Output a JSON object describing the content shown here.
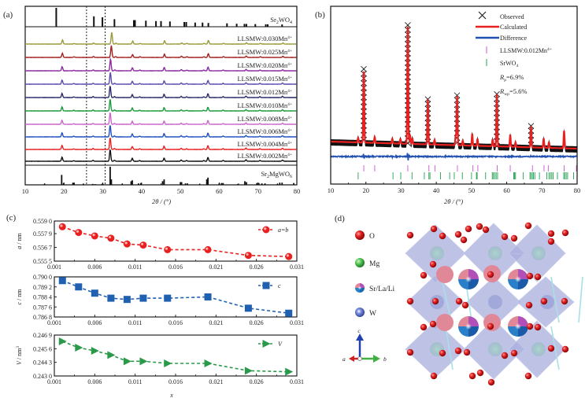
{
  "figure": {
    "panel_labels": [
      "(a)",
      "(b)",
      "(c)",
      "(d)"
    ]
  },
  "chart_data": [
    {
      "id": "a",
      "type": "line",
      "title": "",
      "xlabel": "2θ / (°)",
      "ylabel": "",
      "xlim": [
        10,
        80
      ],
      "xticks": [
        10,
        20,
        30,
        40,
        50,
        60,
        70,
        80
      ],
      "grid": false,
      "dashed_vlines": [
        25.8,
        30.6
      ],
      "reference_top": {
        "name": "Sr2WO4",
        "label_main": "Sr",
        "label_sub1": "2",
        "label_mid": "WO",
        "label_sub2": "4",
        "peaks": [
          [
            18.0,
            1.0
          ],
          [
            27.7,
            0.55
          ],
          [
            29.9,
            0.5
          ],
          [
            33.0,
            0.4
          ],
          [
            38.0,
            0.35
          ],
          [
            38.3,
            0.35
          ],
          [
            41.1,
            0.32
          ],
          [
            43.7,
            0.3
          ],
          [
            45.0,
            0.3
          ],
          [
            47.3,
            0.28
          ],
          [
            51.0,
            0.25
          ],
          [
            51.5,
            0.25
          ],
          [
            53.8,
            0.22
          ],
          [
            55.7,
            0.22
          ],
          [
            57.2,
            0.2
          ],
          [
            62.0,
            0.18
          ],
          [
            64.5,
            0.16
          ],
          [
            66.5,
            0.15
          ],
          [
            67.0,
            0.15
          ],
          [
            69.3,
            0.14
          ],
          [
            72.0,
            0.13
          ],
          [
            72.5,
            0.13
          ],
          [
            76.2,
            0.12
          ]
        ]
      },
      "series": [
        {
          "name": "LLSMW:0.030Mn4+",
          "label_main": "LLSMW:0.030Mn",
          "label_sup": "4+",
          "color": "#9a9a3a",
          "shift": 0.4
        },
        {
          "name": "LLSMW:0.025Mn4+",
          "label_main": "LLSMW:0.025Mn",
          "label_sup": "4+",
          "color": "#a32020",
          "shift": 0.3
        },
        {
          "name": "LLSMW:0.020Mn4+",
          "label_main": "LLSMW:0.020Mn",
          "label_sup": "4+",
          "color": "#8a2aa0",
          "shift": 0.1
        },
        {
          "name": "LLSMW:0.015Mn4+",
          "label_main": "LLSMW:0.015Mn",
          "label_sup": "4+",
          "color": "#5a4ab0",
          "shift": 0.05
        },
        {
          "name": "LLSMW:0.012Mn4+",
          "label_main": "LLSMW:0.012Mn",
          "label_sup": "4+",
          "color": "#2a2a6a",
          "shift": 0.0
        },
        {
          "name": "LLSMW:0.010Mn4+",
          "label_main": "LLSMW:0.010Mn",
          "label_sup": "4+",
          "color": "#1a9a3a",
          "shift": 0.0
        },
        {
          "name": "LLSMW:0.008Mn4+",
          "label_main": "LLSMW:0.008Mn",
          "label_sup": "4+",
          "color": "#cc66cc",
          "shift": 0.0
        },
        {
          "name": "LLSMW:0.006Mn4+",
          "label_main": "LLSMW:0.006Mn",
          "label_sup": "4+",
          "color": "#2050c0",
          "shift": 0.0
        },
        {
          "name": "LLSMW:0.004Mn4+",
          "label_main": "LLSMW:0.004Mn",
          "label_sup": "4+",
          "color": "#e82020",
          "shift": 0.0
        },
        {
          "name": "LLSMW:0.002Mn4+",
          "label_main": "LLSMW:0.002Mn",
          "label_sup": "4+",
          "color": "#111111",
          "shift": 0.0
        }
      ],
      "sample_peaks": [
        [
          19.5,
          0.35
        ],
        [
          22.5,
          0.05
        ],
        [
          27.5,
          0.08
        ],
        [
          31.9,
          1.0
        ],
        [
          33.0,
          0.08
        ],
        [
          37.6,
          0.25
        ],
        [
          39.5,
          0.06
        ],
        [
          45.8,
          0.28
        ],
        [
          50.2,
          0.1
        ],
        [
          51.6,
          0.06
        ],
        [
          56.0,
          0.06
        ],
        [
          57.1,
          0.32
        ],
        [
          61.0,
          0.07
        ],
        [
          66.9,
          0.12
        ],
        [
          70.5,
          0.07
        ],
        [
          76.3,
          0.1
        ]
      ],
      "reference_bottom": {
        "name": "Sr2MgWO6",
        "label_main": "Sr",
        "label_sub1": "2",
        "label_mid": "MgWO",
        "label_sub2": "6",
        "peaks": [
          [
            15.0,
            0.06
          ],
          [
            19.4,
            0.55
          ],
          [
            19.9,
            0.1
          ],
          [
            22.3,
            0.12
          ],
          [
            22.6,
            0.12
          ],
          [
            25.0,
            0.05
          ],
          [
            27.4,
            0.05
          ],
          [
            28.0,
            0.04
          ],
          [
            29.8,
            0.06
          ],
          [
            30.0,
            0.06
          ],
          [
            31.9,
            1.0
          ],
          [
            32.2,
            0.3
          ],
          [
            35.0,
            0.06
          ],
          [
            37.3,
            0.2
          ],
          [
            37.6,
            0.25
          ],
          [
            39.2,
            0.08
          ],
          [
            39.8,
            0.1
          ],
          [
            45.4,
            0.2
          ],
          [
            45.8,
            0.3
          ],
          [
            50.0,
            0.15
          ],
          [
            50.3,
            0.15
          ],
          [
            51.3,
            0.08
          ],
          [
            51.8,
            0.08
          ],
          [
            55.0,
            0.04
          ],
          [
            56.8,
            0.3
          ],
          [
            57.1,
            0.4
          ],
          [
            60.0,
            0.08
          ],
          [
            60.6,
            0.1
          ],
          [
            61.0,
            0.1
          ],
          [
            64.8,
            0.05
          ],
          [
            66.6,
            0.2
          ],
          [
            67.0,
            0.15
          ],
          [
            69.7,
            0.1
          ],
          [
            70.2,
            0.1
          ],
          [
            71.0,
            0.08
          ],
          [
            71.8,
            0.08
          ],
          [
            75.0,
            0.05
          ],
          [
            75.6,
            0.12
          ],
          [
            76.2,
            0.12
          ],
          [
            79.2,
            0.1
          ]
        ]
      }
    },
    {
      "id": "b",
      "type": "line",
      "title": "",
      "xlabel": "2θ / (°)",
      "ylabel": "",
      "xlim": [
        10,
        80
      ],
      "xticks": [
        10,
        20,
        30,
        40,
        50,
        60,
        70,
        80
      ],
      "grid": false,
      "legend_position": "top-right",
      "legend": [
        {
          "name": "Observed",
          "marker": "x",
          "color": "#111111"
        },
        {
          "name": "Calculated",
          "marker": "line",
          "color": "#e82020"
        },
        {
          "name": "Difference",
          "marker": "line",
          "color": "#2050b0"
        },
        {
          "name": "LLSMW:0.012Mn4+",
          "label_main": "LLSMW:0.012Mn",
          "label_sup": "4+",
          "marker": "tick",
          "color": "#cc55cc"
        },
        {
          "name": "SrWO4",
          "label_main": "SrWO",
          "label_sub": "4",
          "marker": "tick",
          "color": "#22a050"
        }
      ],
      "annotations": [
        {
          "symbol": "R",
          "sub": "p",
          "text": "=6.9%"
        },
        {
          "symbol": "R",
          "sub": "wp",
          "text": "=5.6%"
        }
      ],
      "background_start": 0.22,
      "background_end": 0.12,
      "peaks": [
        [
          17.8,
          0.04
        ],
        [
          19.4,
          0.62
        ],
        [
          22.5,
          0.05
        ],
        [
          27.5,
          0.04
        ],
        [
          29.8,
          0.04
        ],
        [
          31.9,
          1.0
        ],
        [
          32.5,
          0.08
        ],
        [
          33.2,
          0.05
        ],
        [
          37.6,
          0.38
        ],
        [
          39.5,
          0.04
        ],
        [
          45.5,
          0.08
        ],
        [
          45.9,
          0.42
        ],
        [
          47.5,
          0.04
        ],
        [
          50.2,
          0.1
        ],
        [
          51.7,
          0.06
        ],
        [
          56.0,
          0.06
        ],
        [
          57.2,
          0.44
        ],
        [
          61.0,
          0.1
        ],
        [
          62.5,
          0.04
        ],
        [
          66.9,
          0.18
        ],
        [
          70.5,
          0.08
        ],
        [
          72.0,
          0.05
        ],
        [
          76.3,
          0.15
        ]
      ],
      "difference_spikes": [
        [
          19.4,
          0.06
        ],
        [
          27.4,
          0.02
        ],
        [
          31.9,
          0.09
        ],
        [
          45.9,
          0.02
        ],
        [
          57.2,
          0.015
        ],
        [
          66.9,
          0.015
        ]
      ],
      "phase1_ticks": [
        19.4,
        22.5,
        31.9,
        37.9,
        39.6,
        46.0,
        50.4,
        51.8,
        57.3,
        61.0,
        67.3,
        70.6,
        71.8,
        76.3,
        79.8
      ],
      "phase2_ticks": [
        17.8,
        27.7,
        29.9,
        33.1,
        36.6,
        37.9,
        38.2,
        41.2,
        43.8,
        45.1,
        47.4,
        50.0,
        51.4,
        51.6,
        54.0,
        55.9,
        56.2,
        56.6,
        57.0,
        57.4,
        62.0,
        62.2,
        62.5,
        64.7,
        66.6,
        66.9,
        67.3,
        67.6,
        68.0,
        69.3,
        71.4,
        72.0,
        72.4,
        72.8,
        73.2,
        74.4,
        76.2,
        76.5,
        76.9,
        77.3,
        79.0
      ]
    },
    {
      "id": "c",
      "type": "line",
      "subplots": [
        {
          "name": "a=b",
          "legend_label": "a=b",
          "ylabel_symbol": "a",
          "ylabel_unit": " / nm",
          "marker": "circle",
          "color": "#e82020",
          "ylim": [
            0.5555,
            0.559
          ],
          "yticks": [
            "0.559 0",
            "0.557 9",
            "0.556 7",
            "0.555 5"
          ],
          "ytick_values": [
            0.559,
            0.5579,
            0.5567,
            0.5555
          ],
          "values": [
            0.5585,
            0.558,
            0.5577,
            0.5575,
            0.557,
            0.5569,
            0.5565,
            0.5565,
            0.556,
            0.5559
          ]
        },
        {
          "name": "c",
          "legend_label": "c",
          "ylabel_symbol": "c",
          "ylabel_unit": " / nm",
          "marker": "square",
          "color": "#2060b0",
          "ylim": [
            0.7868,
            0.79
          ],
          "yticks": [
            "0.790 0",
            "0.789 2",
            "0.788 4",
            "0.787 6",
            "0.786 8"
          ],
          "ytick_values": [
            0.79,
            0.7892,
            0.7884,
            0.7876,
            0.7868
          ],
          "values": [
            0.7897,
            0.7892,
            0.7887,
            0.7883,
            0.7882,
            0.7883,
            0.7883,
            0.7884,
            0.7875,
            0.7871
          ]
        },
        {
          "name": "V",
          "legend_label": "V",
          "ylabel_symbol": "V",
          "ylabel_unit": " / nm",
          "ylabel_sup": "3",
          "marker": "triangle-right",
          "color": "#2a9a4a",
          "ylim": [
            0.243,
            0.2469
          ],
          "yticks": [
            "0.246 9",
            "0.245 6",
            "0.244 3",
            "0.243 0"
          ],
          "ytick_values": [
            0.2469,
            0.2456,
            0.2443,
            0.243
          ],
          "values": [
            0.2463,
            0.2457,
            0.2454,
            0.245,
            0.2444,
            0.2444,
            0.2442,
            0.2442,
            0.2435,
            0.2434
          ]
        }
      ],
      "x": [
        0.002,
        0.004,
        0.006,
        0.008,
        0.01,
        0.012,
        0.015,
        0.02,
        0.025,
        0.03
      ],
      "xlim": [
        0.001,
        0.031
      ],
      "xticks": [
        "0.001",
        "0.006",
        "0.011",
        "0.016",
        "0.021",
        "0.026",
        "0.031"
      ],
      "xtick_values": [
        0.001,
        0.006,
        0.011,
        0.016,
        0.021,
        0.026,
        0.031
      ],
      "xlabel": "x",
      "grid": false,
      "legend_position": "top-right"
    }
  ],
  "structure": {
    "legend": [
      {
        "name": "O",
        "color": "#d42020"
      },
      {
        "name": "Mg",
        "color": "#40b040"
      },
      {
        "name": "Sr/La/Li",
        "color": "mixed"
      },
      {
        "name": "W",
        "color": "#4a60c0"
      }
    ],
    "axes": {
      "a": "a",
      "b": "b",
      "c": "c"
    }
  }
}
